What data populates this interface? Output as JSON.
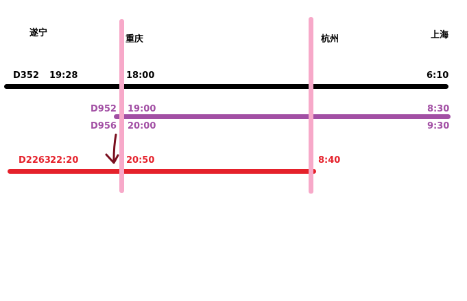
{
  "cities": {
    "suining": "遂宁",
    "chongqing": "重庆",
    "hangzhou": "杭州",
    "shanghai": "上海"
  },
  "colors": {
    "black_line": "#000000",
    "purple_line": "#a24fa4",
    "red_line": "#e5212b",
    "pink_marker": "#f7a9c9",
    "arrow": "#7a0f1f"
  },
  "trains": {
    "d352": {
      "code": "D352",
      "depart": "19:28",
      "chongqing": "18:00",
      "shanghai": "6:10"
    },
    "d952": {
      "code": "D952",
      "chongqing": "19:00",
      "shanghai": "8:30"
    },
    "d956": {
      "code": "D956",
      "chongqing": "20:00",
      "shanghai": "9:30"
    },
    "d2263": {
      "code": "D2263",
      "depart": "22:20",
      "chongqing": "20:50",
      "hangzhou": "8:40"
    }
  }
}
